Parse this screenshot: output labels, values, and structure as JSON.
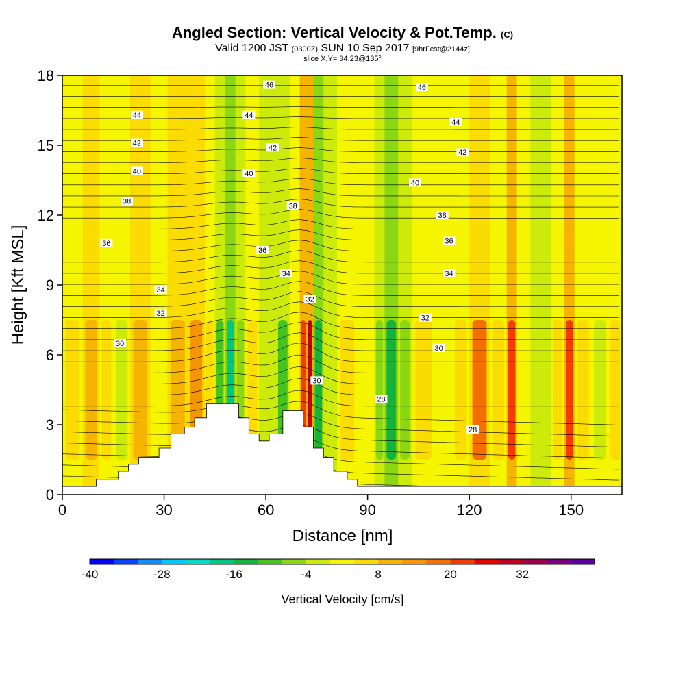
{
  "header": {
    "title": "Angled Section: Vertical Velocity & Pot.Temp.",
    "title_suffix": "(C)",
    "subtitle_a": "Valid 1200 JST",
    "subtitle_b": "(0300Z)",
    "subtitle_c": "SUN 10 Sep 2017",
    "subtitle_d": "[9hrFcst@2144z]",
    "slice": "slice X,Y= 34,23@135°"
  },
  "chart_data": {
    "type": "heatmap",
    "xlabel": "Distance [nm]",
    "ylabel": "Height [Kft MSL]",
    "xlim": [
      0,
      165
    ],
    "ylim": [
      0,
      18
    ],
    "x_ticks": [
      0,
      30,
      60,
      90,
      120,
      150
    ],
    "y_ticks": [
      0,
      3,
      6,
      9,
      12,
      15,
      18
    ],
    "terrain": [
      [
        0,
        0.35
      ],
      [
        10,
        0.35
      ],
      [
        10,
        0.65
      ],
      [
        16.5,
        0.65
      ],
      [
        16.5,
        1.0
      ],
      [
        19.5,
        1.0
      ],
      [
        19.5,
        1.3
      ],
      [
        22.5,
        1.3
      ],
      [
        22.5,
        1.6
      ],
      [
        28.5,
        1.6
      ],
      [
        28.5,
        2.0
      ],
      [
        32,
        2.0
      ],
      [
        32,
        2.6
      ],
      [
        36,
        2.6
      ],
      [
        36,
        2.9
      ],
      [
        39,
        2.9
      ],
      [
        39,
        3.3
      ],
      [
        42.5,
        3.3
      ],
      [
        42.5,
        3.9
      ],
      [
        52,
        3.9
      ],
      [
        52,
        3.3
      ],
      [
        55,
        3.3
      ],
      [
        55,
        2.6
      ],
      [
        58,
        2.6
      ],
      [
        58,
        2.3
      ],
      [
        61,
        2.3
      ],
      [
        61,
        2.6
      ],
      [
        65,
        2.6
      ],
      [
        65,
        3.6
      ],
      [
        71,
        3.6
      ],
      [
        71,
        2.9
      ],
      [
        74,
        2.9
      ],
      [
        74,
        2.0
      ],
      [
        77,
        2.0
      ],
      [
        77,
        1.6
      ],
      [
        80,
        1.6
      ],
      [
        80,
        1.0
      ],
      [
        84,
        1.0
      ],
      [
        84,
        0.65
      ],
      [
        87,
        0.65
      ],
      [
        87,
        0.35
      ],
      [
        165,
        0.35
      ]
    ],
    "velocity_cells": [
      {
        "x": 0,
        "w": 6,
        "v": 3
      },
      {
        "x": 6,
        "w": 5,
        "v": 6
      },
      {
        "x": 11,
        "w": 4,
        "v": 2
      },
      {
        "x": 15,
        "w": 5,
        "v": -4
      },
      {
        "x": 20,
        "w": 6,
        "v": 6
      },
      {
        "x": 26,
        "w": 5,
        "v": -1
      },
      {
        "x": 31,
        "w": 6,
        "v": 6
      },
      {
        "x": 37,
        "w": 5,
        "v": 12
      },
      {
        "x": 42,
        "w": 3,
        "v": 3
      },
      {
        "x": 45,
        "w": 3,
        "v": -12
      },
      {
        "x": 48,
        "w": 3,
        "v": -20
      },
      {
        "x": 51,
        "w": 3,
        "v": -8
      },
      {
        "x": 54,
        "w": 4,
        "v": 3
      },
      {
        "x": 58,
        "w": 5,
        "v": -6
      },
      {
        "x": 63,
        "w": 4,
        "v": -12
      },
      {
        "x": 67,
        "w": 3,
        "v": -2
      },
      {
        "x": 70,
        "w": 2,
        "v": 18
      },
      {
        "x": 72,
        "w": 2,
        "v": 28
      },
      {
        "x": 74,
        "w": 3,
        "v": -18
      },
      {
        "x": 77,
        "w": 4,
        "v": -6
      },
      {
        "x": 81,
        "w": 6,
        "v": 2
      },
      {
        "x": 87,
        "w": 5,
        "v": -2
      },
      {
        "x": 92,
        "w": 3,
        "v": -10
      },
      {
        "x": 95,
        "w": 4,
        "v": -18
      },
      {
        "x": 99,
        "w": 4,
        "v": -8
      },
      {
        "x": 103,
        "w": 7,
        "v": 3
      },
      {
        "x": 110,
        "w": 5,
        "v": -1
      },
      {
        "x": 115,
        "w": 5,
        "v": 4
      },
      {
        "x": 120,
        "w": 6,
        "v": 14
      },
      {
        "x": 126,
        "w": 5,
        "v": 3
      },
      {
        "x": 131,
        "w": 3,
        "v": 18
      },
      {
        "x": 134,
        "w": 4,
        "v": 0
      },
      {
        "x": 138,
        "w": 6,
        "v": -6
      },
      {
        "x": 144,
        "w": 4,
        "v": 3
      },
      {
        "x": 148,
        "w": 3,
        "v": 18
      },
      {
        "x": 151,
        "w": 5,
        "v": 4
      },
      {
        "x": 156,
        "w": 5,
        "v": -4
      },
      {
        "x": 161,
        "w": 4,
        "v": 3
      }
    ],
    "pot_temp_labels": [
      {
        "x": 22,
        "y": 16.3,
        "t": "44"
      },
      {
        "x": 22,
        "y": 15.1,
        "t": "42"
      },
      {
        "x": 22,
        "y": 13.9,
        "t": "40"
      },
      {
        "x": 19,
        "y": 12.6,
        "t": "38"
      },
      {
        "x": 13,
        "y": 10.8,
        "t": "36"
      },
      {
        "x": 29,
        "y": 8.8,
        "t": "34"
      },
      {
        "x": 29,
        "y": 7.8,
        "t": "32"
      },
      {
        "x": 17,
        "y": 6.5,
        "t": "30"
      },
      {
        "x": 61,
        "y": 17.6,
        "t": "46"
      },
      {
        "x": 55,
        "y": 16.3,
        "t": "44"
      },
      {
        "x": 62,
        "y": 14.9,
        "t": "42"
      },
      {
        "x": 55,
        "y": 13.8,
        "t": "40"
      },
      {
        "x": 68,
        "y": 12.4,
        "t": "38"
      },
      {
        "x": 59,
        "y": 10.5,
        "t": "36"
      },
      {
        "x": 66,
        "y": 9.5,
        "t": "34"
      },
      {
        "x": 73,
        "y": 8.4,
        "t": "32"
      },
      {
        "x": 75,
        "y": 4.9,
        "t": "30"
      },
      {
        "x": 106,
        "y": 17.5,
        "t": "46"
      },
      {
        "x": 116,
        "y": 16.0,
        "t": "44"
      },
      {
        "x": 118,
        "y": 14.7,
        "t": "42"
      },
      {
        "x": 104,
        "y": 13.4,
        "t": "40"
      },
      {
        "x": 112,
        "y": 12.0,
        "t": "38"
      },
      {
        "x": 114,
        "y": 10.9,
        "t": "36"
      },
      {
        "x": 114,
        "y": 9.5,
        "t": "34"
      },
      {
        "x": 107,
        "y": 7.6,
        "t": "32"
      },
      {
        "x": 111,
        "y": 6.3,
        "t": "30"
      },
      {
        "x": 94,
        "y": 4.1,
        "t": "28"
      },
      {
        "x": 121,
        "y": 2.8,
        "t": "28"
      }
    ]
  },
  "colorbar": {
    "ticks": [
      "-40",
      "-28",
      "-16",
      "-4",
      "8",
      "20",
      "32"
    ],
    "label": "Vertical Velocity [cm/s]",
    "colors": [
      "#0000ff",
      "#0a40ff",
      "#0f8cff",
      "#00c8ff",
      "#00dcc8",
      "#00c882",
      "#14b43c",
      "#46c31e",
      "#8cd714",
      "#cdeb0a",
      "#f5f500",
      "#fadc00",
      "#f5b400",
      "#f59600",
      "#f56e00",
      "#f53c00",
      "#e60000",
      "#c3001e",
      "#a00050",
      "#78007d",
      "#5a00a0"
    ]
  }
}
